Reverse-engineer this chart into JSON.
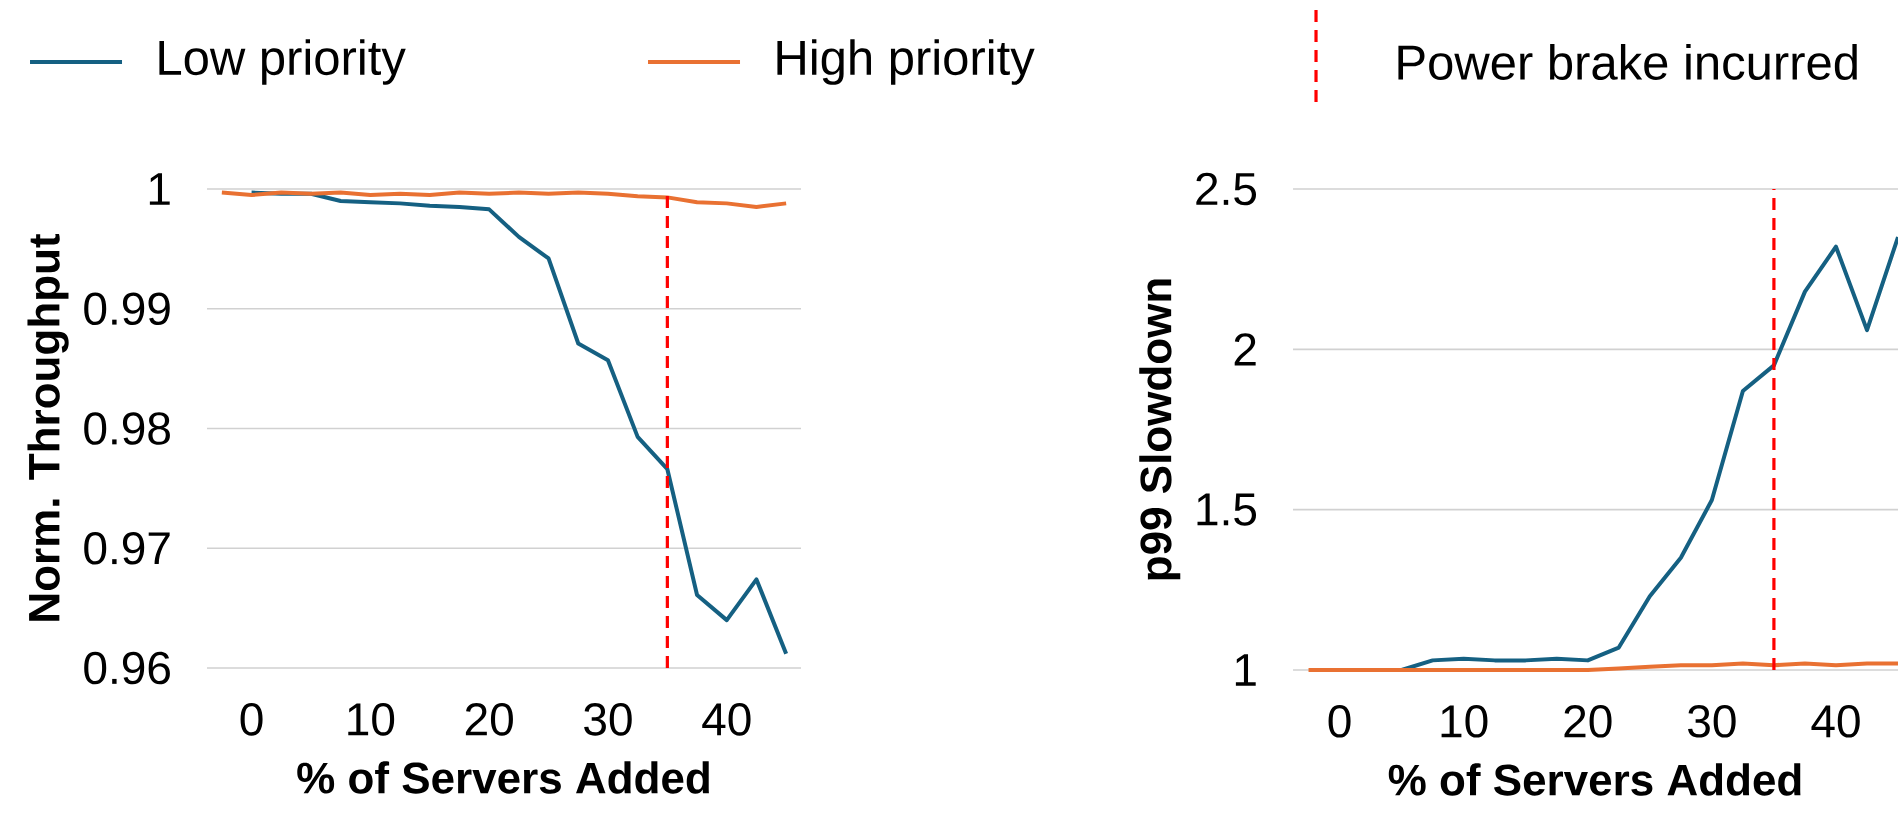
{
  "chart_data": [
    {
      "type": "line",
      "xlabel": "% of Servers Added",
      "ylabel": "Norm. Throughput",
      "x": [
        -2.5,
        0,
        2.5,
        5,
        7.5,
        10,
        12.5,
        15,
        17.5,
        20,
        22.5,
        25,
        27.5,
        30,
        32.5,
        35,
        37.5,
        40,
        42.5,
        45
      ],
      "series": [
        {
          "name": "Low priority",
          "color": "#156082",
          "values": [
            null,
            0.9997,
            0.9996,
            0.9996,
            0.999,
            0.9989,
            0.9988,
            0.9986,
            0.9985,
            0.9983,
            0.996,
            0.9942,
            0.9871,
            0.9857,
            0.9793,
            0.9766,
            0.9661,
            0.964,
            0.9674,
            0.9612
          ]
        },
        {
          "name": "High priority",
          "color": "#e97132",
          "values": [
            0.9997,
            0.9995,
            0.9997,
            0.9996,
            0.9997,
            0.9995,
            0.9996,
            0.9995,
            0.9997,
            0.9996,
            0.9997,
            0.9996,
            0.9997,
            0.9996,
            0.9994,
            0.9993,
            0.9989,
            0.9988,
            0.9985,
            0.9988
          ]
        }
      ],
      "ref_lines": [
        {
          "axis": "x",
          "value": 35,
          "label": "Power brake incurred",
          "color": "#ff0000",
          "line_style": "dashed"
        }
      ],
      "xlim": [
        -3.75,
        46.25
      ],
      "xticks": [
        0,
        10,
        20,
        30,
        40
      ],
      "ylim": [
        0.96,
        1
      ],
      "yticks": [
        0.96,
        0.97,
        0.98,
        0.99,
        1
      ],
      "grid": "y",
      "legend": "top"
    },
    {
      "type": "line",
      "xlabel": "% of Servers Added",
      "ylabel": "p99 Slowdown",
      "x": [
        -2.5,
        0,
        2.5,
        5,
        7.5,
        10,
        12.5,
        15,
        17.5,
        20,
        22.5,
        25,
        27.5,
        30,
        32.5,
        35,
        37.5,
        40,
        42.5,
        45
      ],
      "series": [
        {
          "color": "#156082",
          "values": [
            null,
            null,
            null,
            1,
            1.03,
            1.035,
            1.03,
            1.03,
            1.035,
            1.03,
            1.07,
            1.23,
            1.35,
            1.53,
            1.87,
            1.95,
            2.18,
            2.32,
            2.06,
            2.35
          ]
        },
        {
          "color": "#e97132",
          "values": [
            1,
            1,
            1,
            1,
            1,
            1,
            1,
            1,
            1,
            1,
            1.005,
            1.01,
            1.015,
            1.015,
            1.02,
            1.015,
            1.02,
            1.015,
            1.02,
            1.02
          ]
        }
      ],
      "ref_lines": [
        {
          "axis": "x",
          "value": 35,
          "color": "#ff0000",
          "line_style": "dashed"
        }
      ],
      "xlim": [
        -3.75,
        45
      ],
      "xticks": [
        0,
        10,
        20,
        30,
        40
      ],
      "ylim": [
        1,
        2.5
      ],
      "yticks": [
        1,
        1.5,
        2,
        2.5
      ],
      "grid": "y"
    }
  ]
}
